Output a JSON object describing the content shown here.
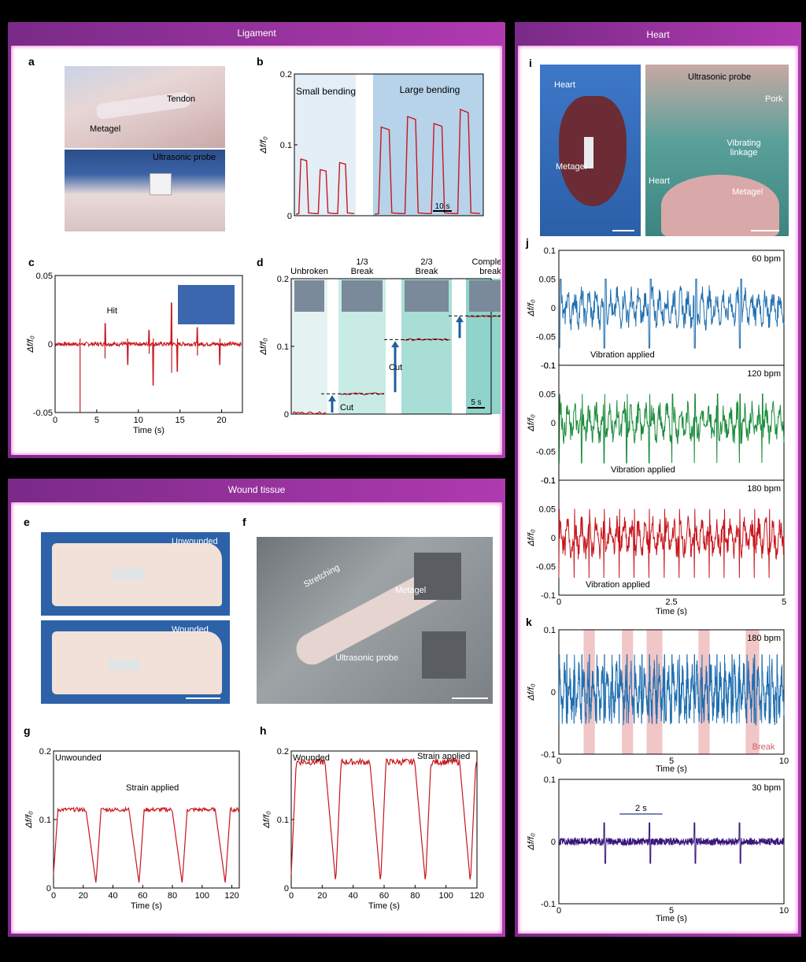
{
  "colors": {
    "header_gradient_start": "#7a2a88",
    "header_gradient_end": "#b03ab0",
    "border_glow": "#e055c8",
    "trace_red": "#c8161d",
    "trace_blue": "#1f6fb0",
    "trace_green": "#1a8c3a",
    "trace_purple": "#3a157a"
  },
  "sections": {
    "ligament": "Ligament",
    "wound": "Wound tissue",
    "heart": "Heart"
  },
  "panels": {
    "a": "a",
    "b": "b",
    "c": "c",
    "d": "d",
    "e": "e",
    "f": "f",
    "g": "g",
    "h": "h",
    "i": "i",
    "j": "j",
    "k": "k"
  },
  "photos": {
    "a_top": {
      "metagel": "Metagel",
      "tendon": "Tendon"
    },
    "a_bottom": {
      "probe": "Ultrasonic probe"
    },
    "e_top": {
      "label": "Unwounded"
    },
    "e_bottom": {
      "label": "Wounded"
    },
    "f": {
      "stretching": "Stretching",
      "metagel": "Metagel",
      "probe": "Ultrasonic probe"
    },
    "i_left": {
      "heart": "Heart",
      "metagel": "Metagel"
    },
    "i_right": {
      "probe": "Ultrasonic probe",
      "pork": "Pork",
      "linkage": "Vibrating linkage",
      "heart": "Heart",
      "metagel": "Metagel"
    }
  },
  "chart_data": [
    {
      "id": "b",
      "type": "line",
      "ylabel": "Δf/f₀",
      "ylim": [
        0,
        0.2
      ],
      "yticks": [
        "0",
        "0.1",
        "0.2"
      ],
      "regions": [
        "Small bending",
        "Large bending"
      ],
      "scale_label": "10 s",
      "series": [
        {
          "name": "Small bending",
          "peaks": [
            0.08,
            0.065,
            0.075
          ]
        },
        {
          "name": "Large bending",
          "peaks": [
            0.125,
            0.14,
            0.13,
            0.15
          ]
        }
      ]
    },
    {
      "id": "c",
      "type": "line",
      "xlabel": "Time (s)",
      "ylabel": "Δf/f₀",
      "xlim": [
        0,
        22.5
      ],
      "ylim": [
        -0.05,
        0.05
      ],
      "xticks": [
        "0",
        "5",
        "10",
        "15",
        "20"
      ],
      "yticks": [
        "-0.05",
        "0",
        "0.05"
      ],
      "annotation": "Hit",
      "spikes": [
        {
          "x": 3,
          "v": 0.0,
          "min": -0.05
        },
        {
          "x": 6,
          "v": 0.015
        },
        {
          "x": 8.7,
          "v": -0.015
        },
        {
          "x": 11.3,
          "v": 0.01
        },
        {
          "x": 11.8,
          "v": -0.03
        },
        {
          "x": 14,
          "v": 0.03
        },
        {
          "x": 14.7,
          "v": -0.02
        },
        {
          "x": 17.1,
          "v": 0.012
        },
        {
          "x": 19.8,
          "v": -0.015
        }
      ]
    },
    {
      "id": "d",
      "type": "line",
      "ylabel": "Δf/f₀",
      "ylim": [
        0,
        0.2
      ],
      "yticks": [
        "0",
        "0.1",
        "0.2"
      ],
      "stages": [
        "Unbroken",
        "1/3\nBreak",
        "2/3\nBreak",
        "Complete\nbreak"
      ],
      "levels": [
        0.002,
        0.03,
        0.11,
        0.145
      ],
      "arrow_label": "Cut",
      "scale_label": "5 s"
    },
    {
      "id": "g",
      "type": "line",
      "xlabel": "Time (s)",
      "ylabel": "Δf/f₀",
      "xlim": [
        0,
        125
      ],
      "ylim": [
        0,
        0.2
      ],
      "xticks": [
        "0",
        "20",
        "40",
        "60",
        "80",
        "100",
        "120"
      ],
      "yticks": [
        "0",
        "0.1",
        "0.2"
      ],
      "title": "Unwounded",
      "annotation": "Strain applied",
      "plateau": 0.115
    },
    {
      "id": "h",
      "type": "line",
      "xlabel": "Time (s)",
      "ylabel": "Δf/f₀",
      "xlim": [
        0,
        120
      ],
      "ylim": [
        0,
        0.2
      ],
      "xticks": [
        "0",
        "20",
        "40",
        "60",
        "80",
        "100",
        "120"
      ],
      "yticks": [
        "0",
        "0.1",
        "0.2"
      ],
      "title": "Wounded",
      "annotation": "Strain applied",
      "plateau": 0.185
    },
    {
      "id": "j",
      "type": "line",
      "xlabel": "Time (s)",
      "ylabel": "Δf/f₀",
      "xlim": [
        0,
        5
      ],
      "ylim": [
        -0.1,
        0.1
      ],
      "xticks": [
        "0",
        "2.5",
        "5"
      ],
      "yticks": [
        "-0.1",
        "-0.05",
        "0",
        "0.05",
        "0.1"
      ],
      "series": [
        {
          "name": "60 bpm",
          "rate_bpm": 60,
          "annotation": "Vibration applied"
        },
        {
          "name": "120 bpm",
          "rate_bpm": 120,
          "annotation": "Vibration applied"
        },
        {
          "name": "180 bpm",
          "rate_bpm": 180,
          "annotation": "Vibration applied"
        }
      ]
    },
    {
      "id": "k",
      "type": "line",
      "xlabel": "Time (s)",
      "ylabel": "Δf/f₀",
      "xlim": [
        0,
        10
      ],
      "ylim": [
        -0.1,
        0.1
      ],
      "xticks": [
        "0",
        "5",
        "10"
      ],
      "yticks": [
        "-0.1",
        "0",
        "0.1"
      ],
      "series": [
        {
          "name": "180 bpm",
          "rate_bpm": 180,
          "break_intervals": [
            [
              1.1,
              1.6
            ],
            [
              2.8,
              3.3
            ],
            [
              3.9,
              4.6
            ],
            [
              6.2,
              6.7
            ],
            [
              8.3,
              8.9
            ]
          ],
          "break_label": "Break"
        },
        {
          "name": "30 bpm",
          "rate_bpm": 30,
          "interval_label": "2 s"
        }
      ]
    }
  ]
}
